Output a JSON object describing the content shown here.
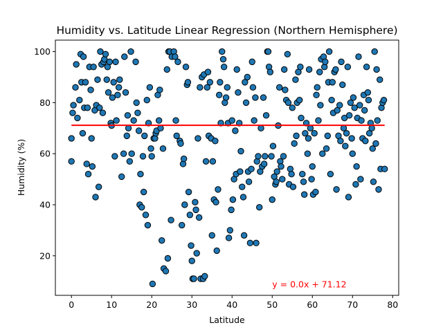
{
  "chart_data": {
    "type": "scatter",
    "title": "Humidity vs. Latitude Linear Regression (Northern Hemisphere)",
    "xlabel": "Latitude",
    "ylabel": "Humidity (%)",
    "xlim": [
      -4,
      81.5
    ],
    "ylim": [
      4.5,
      104.5
    ],
    "xticks": [
      0,
      10,
      20,
      30,
      40,
      50,
      60,
      70,
      80
    ],
    "yticks": [
      20,
      40,
      60,
      80,
      100
    ],
    "grid": false,
    "marker_color": "#1f77b4",
    "marker_edge": "#000000",
    "regression": {
      "slope": 0.0,
      "intercept": 71.12,
      "x_range": [
        0,
        78
      ],
      "color": "#ff0000",
      "equation": "y = 0.0x + 71.12",
      "label_x": 50,
      "label_y": 9
    },
    "points": [
      [
        0,
        66
      ],
      [
        0,
        57
      ],
      [
        0.3,
        76
      ],
      [
        0.5,
        79
      ],
      [
        1,
        86
      ],
      [
        1.2,
        95
      ],
      [
        1.5,
        74
      ],
      [
        2,
        81
      ],
      [
        2.3,
        99
      ],
      [
        2.5,
        88
      ],
      [
        2.8,
        68
      ],
      [
        3,
        98
      ],
      [
        3.2,
        78
      ],
      [
        3.5,
        88
      ],
      [
        3.8,
        56
      ],
      [
        4,
        78
      ],
      [
        4.2,
        52
      ],
      [
        4.5,
        94
      ],
      [
        4.8,
        85
      ],
      [
        5,
        66
      ],
      [
        5.2,
        55
      ],
      [
        5.5,
        94
      ],
      [
        5.8,
        77
      ],
      [
        6,
        43
      ],
      [
        6.2,
        79
      ],
      [
        6.5,
        89
      ],
      [
        6.8,
        47
      ],
      [
        7,
        78
      ],
      [
        7.2,
        100
      ],
      [
        7.5,
        95
      ],
      [
        7.8,
        76
      ],
      [
        8,
        96
      ],
      [
        8.2,
        97
      ],
      [
        8.5,
        99
      ],
      [
        8.8,
        89
      ],
      [
        9,
        94
      ],
      [
        9.2,
        84
      ],
      [
        9.5,
        96
      ],
      [
        9.8,
        72
      ],
      [
        10,
        71
      ],
      [
        10.2,
        82
      ],
      [
        10.5,
        88
      ],
      [
        10.8,
        59
      ],
      [
        11,
        96
      ],
      [
        11.2,
        73
      ],
      [
        11.5,
        83
      ],
      [
        11.8,
        86
      ],
      [
        12,
        89
      ],
      [
        12.5,
        51
      ],
      [
        13,
        60
      ],
      [
        13.2,
        98
      ],
      [
        13.5,
        84
      ],
      [
        13.8,
        67
      ],
      [
        14,
        75
      ],
      [
        14.2,
        70
      ],
      [
        14.5,
        57
      ],
      [
        14.8,
        100
      ],
      [
        15,
        60
      ],
      [
        15.5,
        73
      ],
      [
        16,
        96
      ],
      [
        16.2,
        80
      ],
      [
        16.5,
        76
      ],
      [
        16.8,
        69
      ],
      [
        17,
        40
      ],
      [
        17.2,
        52
      ],
      [
        17.5,
        39
      ],
      [
        17.8,
        59
      ],
      [
        18,
        45
      ],
      [
        18.2,
        67
      ],
      [
        18.5,
        36
      ],
      [
        18.8,
        81
      ],
      [
        19,
        32
      ],
      [
        19.2,
        72
      ],
      [
        19.5,
        86
      ],
      [
        19.8,
        62
      ],
      [
        20,
        59
      ],
      [
        20.2,
        9
      ],
      [
        20.5,
        66
      ],
      [
        20.8,
        66
      ],
      [
        21,
        68
      ],
      [
        21.2,
        69
      ],
      [
        21.5,
        83
      ],
      [
        21.8,
        73
      ],
      [
        22,
        85
      ],
      [
        22.2,
        70
      ],
      [
        22.5,
        26
      ],
      [
        22.8,
        62
      ],
      [
        23,
        15
      ],
      [
        23.5,
        14
      ],
      [
        23.8,
        93
      ],
      [
        24,
        19
      ],
      [
        24.2,
        100
      ],
      [
        24.5,
        100
      ],
      [
        24.8,
        34
      ],
      [
        25,
        98
      ],
      [
        25.5,
        100
      ],
      [
        25.8,
        98
      ],
      [
        26,
        73
      ],
      [
        26.2,
        67
      ],
      [
        26.5,
        96
      ],
      [
        27,
        65
      ],
      [
        27.2,
        64
      ],
      [
        27.5,
        32
      ],
      [
        27.8,
        56
      ],
      [
        28,
        58
      ],
      [
        28.2,
        40
      ],
      [
        28.5,
        94
      ],
      [
        28.8,
        87
      ],
      [
        29,
        88
      ],
      [
        29.2,
        45
      ],
      [
        29.5,
        36
      ],
      [
        29.8,
        24
      ],
      [
        30,
        18
      ],
      [
        30.2,
        11
      ],
      [
        30.5,
        11
      ],
      [
        30.8,
        41
      ],
      [
        31,
        38
      ],
      [
        31.2,
        21
      ],
      [
        31.5,
        66
      ],
      [
        31.8,
        35
      ],
      [
        32,
        86
      ],
      [
        32.2,
        11
      ],
      [
        32.5,
        90
      ],
      [
        32.8,
        11
      ],
      [
        33,
        91
      ],
      [
        33.2,
        12
      ],
      [
        33.5,
        57
      ],
      [
        33.8,
        86
      ],
      [
        34,
        92
      ],
      [
        34.2,
        67
      ],
      [
        34.5,
        88
      ],
      [
        34.8,
        66
      ],
      [
        35,
        28
      ],
      [
        35.2,
        57
      ],
      [
        35.5,
        42
      ],
      [
        35.8,
        65
      ],
      [
        36,
        41
      ],
      [
        36.2,
        22
      ],
      [
        36.5,
        46
      ],
      [
        36.8,
        83
      ],
      [
        37,
        88
      ],
      [
        37.2,
        72
      ],
      [
        37.5,
        100
      ],
      [
        37.8,
        97
      ],
      [
        38,
        94
      ],
      [
        38.2,
        80
      ],
      [
        38.5,
        82
      ],
      [
        38.8,
        86
      ],
      [
        39,
        72
      ],
      [
        39.2,
        27
      ],
      [
        39.5,
        30
      ],
      [
        39.8,
        38
      ],
      [
        40,
        73
      ],
      [
        40.2,
        42
      ],
      [
        40.5,
        50
      ],
      [
        40.8,
        69
      ],
      [
        41,
        52
      ],
      [
        41.2,
        93
      ],
      [
        41.5,
        84
      ],
      [
        41.8,
        72
      ],
      [
        42,
        53
      ],
      [
        42.2,
        61
      ],
      [
        42.5,
        47
      ],
      [
        42.8,
        43
      ],
      [
        43,
        28
      ],
      [
        43.2,
        88
      ],
      [
        43.5,
        80
      ],
      [
        43.8,
        90
      ],
      [
        44,
        53
      ],
      [
        44.2,
        49
      ],
      [
        44.5,
        25
      ],
      [
        44.8,
        54
      ],
      [
        45,
        96
      ],
      [
        45.2,
        86
      ],
      [
        45.5,
        73
      ],
      [
        45.8,
        82
      ],
      [
        46,
        25
      ],
      [
        46.2,
        57
      ],
      [
        46.5,
        59
      ],
      [
        46.8,
        39
      ],
      [
        47,
        53
      ],
      [
        47.2,
        70
      ],
      [
        47.5,
        55
      ],
      [
        47.8,
        82
      ],
      [
        48,
        56
      ],
      [
        48.2,
        59
      ],
      [
        48.5,
        75
      ],
      [
        48.8,
        100
      ],
      [
        49,
        100
      ],
      [
        49.2,
        94
      ],
      [
        49.5,
        92
      ],
      [
        49.8,
        59
      ],
      [
        50,
        42
      ],
      [
        50.2,
        63
      ],
      [
        50.5,
        51
      ],
      [
        50.8,
        48
      ],
      [
        51,
        49
      ],
      [
        51.2,
        53
      ],
      [
        51.5,
        71
      ],
      [
        51.8,
        86
      ],
      [
        52,
        57
      ],
      [
        52.2,
        55
      ],
      [
        52.5,
        50
      ],
      [
        52.8,
        59
      ],
      [
        53,
        93
      ],
      [
        53.2,
        85
      ],
      [
        53.5,
        81
      ],
      [
        53.8,
        99
      ],
      [
        54,
        80
      ],
      [
        54.2,
        48
      ],
      [
        54.5,
        54
      ],
      [
        54.8,
        52
      ],
      [
        55,
        78
      ],
      [
        55.2,
        47
      ],
      [
        55.5,
        64
      ],
      [
        55.8,
        89
      ],
      [
        56,
        67
      ],
      [
        56.2,
        80
      ],
      [
        56.5,
        92
      ],
      [
        56.8,
        81
      ],
      [
        57,
        94
      ],
      [
        57.2,
        74
      ],
      [
        57.5,
        52
      ],
      [
        57.8,
        49
      ],
      [
        58,
        44
      ],
      [
        58.2,
        68
      ],
      [
        58.5,
        72
      ],
      [
        58.8,
        60
      ],
      [
        59,
        66
      ],
      [
        59.2,
        93
      ],
      [
        59.5,
        70
      ],
      [
        59.8,
        50
      ],
      [
        60,
        55
      ],
      [
        60.2,
        44
      ],
      [
        60.5,
        68
      ],
      [
        60.8,
        45
      ],
      [
        61,
        83
      ],
      [
        61.2,
        86
      ],
      [
        61.5,
        73
      ],
      [
        61.8,
        92
      ],
      [
        62,
        79
      ],
      [
        62.2,
        97
      ],
      [
        62.5,
        60
      ],
      [
        62.8,
        98
      ],
      [
        63,
        94
      ],
      [
        63.2,
        96
      ],
      [
        63.5,
        62
      ],
      [
        63.8,
        67
      ],
      [
        64,
        88
      ],
      [
        64.2,
        100
      ],
      [
        64.5,
        52
      ],
      [
        64.8,
        81
      ],
      [
        65,
        88
      ],
      [
        65.2,
        76
      ],
      [
        65.5,
        92
      ],
      [
        65.8,
        93
      ],
      [
        66,
        46
      ],
      [
        66.2,
        77
      ],
      [
        66.5,
        67
      ],
      [
        66.8,
        79
      ],
      [
        67,
        65
      ],
      [
        67.2,
        96
      ],
      [
        67.5,
        87
      ],
      [
        67.8,
        70
      ],
      [
        68,
        74
      ],
      [
        68.2,
        63
      ],
      [
        68.5,
        68
      ],
      [
        68.8,
        94
      ],
      [
        69,
        43
      ],
      [
        69.2,
        75
      ],
      [
        69.5,
        80
      ],
      [
        69.8,
        66
      ],
      [
        70,
        60
      ],
      [
        70.2,
        82
      ],
      [
        70.5,
        78
      ],
      [
        70.8,
        48
      ],
      [
        71,
        55
      ],
      [
        71.2,
        74
      ],
      [
        71.5,
        98
      ],
      [
        71.8,
        79
      ],
      [
        72,
        50
      ],
      [
        72.2,
        73
      ],
      [
        72.5,
        66
      ],
      [
        72.8,
        83
      ],
      [
        73,
        77
      ],
      [
        73.2,
        65
      ],
      [
        73.5,
        94
      ],
      [
        73.8,
        84
      ],
      [
        74,
        81
      ],
      [
        74.2,
        68
      ],
      [
        74.5,
        72
      ],
      [
        74.8,
        70
      ],
      [
        75,
        62
      ],
      [
        75.2,
        49
      ],
      [
        75.5,
        100
      ],
      [
        75.8,
        64
      ],
      [
        76,
        93
      ],
      [
        76.2,
        73
      ],
      [
        76.5,
        46
      ],
      [
        76.8,
        89
      ],
      [
        77,
        54
      ],
      [
        77.2,
        78
      ],
      [
        77.5,
        80
      ],
      [
        77.8,
        81
      ],
      [
        78,
        54
      ]
    ]
  }
}
